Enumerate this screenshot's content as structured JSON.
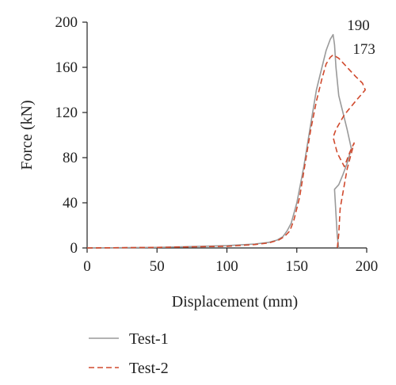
{
  "chart_data": {
    "type": "line",
    "xlabel": "Displacement (mm)",
    "ylabel": "Force (kN)",
    "xlim": [
      0,
      200
    ],
    "ylim": [
      0,
      200
    ],
    "xticks": [
      0,
      50,
      100,
      150,
      200
    ],
    "yticks": [
      0,
      40,
      80,
      120,
      160,
      200
    ],
    "grid": false,
    "legend_position": "bottom-left",
    "series": [
      {
        "name": "Test-1",
        "color": "#9a9a9a",
        "dash": "solid",
        "x": [
          0,
          50,
          100,
          120,
          130,
          136,
          140,
          143,
          146,
          150,
          155,
          160,
          164,
          168,
          171,
          174,
          176,
          177,
          178,
          180,
          183,
          186,
          189,
          186,
          183,
          180,
          177,
          178,
          179,
          180
        ],
        "y": [
          0,
          0.5,
          2,
          3.5,
          5,
          7,
          10,
          15,
          22,
          40,
          72,
          110,
          140,
          160,
          175,
          185,
          189,
          180,
          160,
          135,
          120,
          105,
          88,
          75,
          65,
          56,
          52,
          30,
          10,
          0
        ]
      },
      {
        "name": "Test-2",
        "color": "#d04a2e",
        "dash": "dashed",
        "x": [
          0,
          50,
          100,
          120,
          130,
          137,
          141,
          145,
          148,
          152,
          156,
          160,
          164,
          168,
          171,
          174,
          176,
          180,
          186,
          192,
          197,
          199,
          192,
          184,
          178,
          176,
          179,
          184,
          188,
          191,
          186,
          181,
          180,
          179
        ],
        "y": [
          0,
          0.5,
          1.5,
          3,
          4.5,
          7,
          10,
          15,
          25,
          45,
          75,
          105,
          130,
          150,
          163,
          169,
          171,
          168,
          160,
          152,
          146,
          140,
          130,
          118,
          105,
          98,
          84,
          72,
          85,
          93,
          70,
          35,
          12,
          0
        ]
      }
    ],
    "annotations": [
      {
        "text": "190",
        "x": 186,
        "y": 193
      },
      {
        "text": "173",
        "x": 190,
        "y": 172
      }
    ]
  }
}
